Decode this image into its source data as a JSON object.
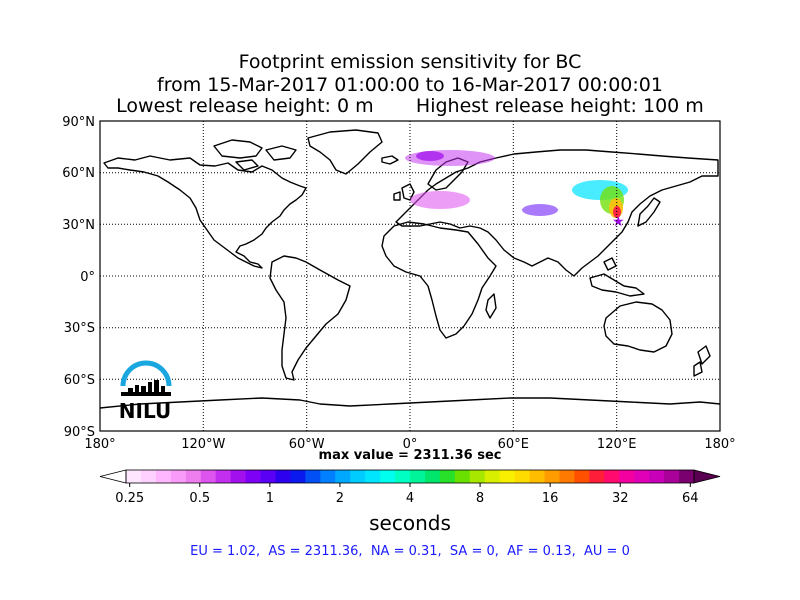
{
  "title": {
    "line1": "Footprint emission sensitivity for BC",
    "line2": "from 15-Mar-2017 01:00:00 to 16-Mar-2017 00:00:01",
    "line3_left": "Lowest release height: 0 m",
    "line3_right": "Highest release height: 100 m"
  },
  "map": {
    "lat_ticks": [
      "90°N",
      "60°N",
      "30°N",
      "0°",
      "30°S",
      "60°S",
      "90°S"
    ],
    "lon_ticks": [
      "180°",
      "120°W",
      "60°W",
      "0°",
      "60°E",
      "120°E",
      "180°"
    ],
    "max_value_label": "max value = 2311.36 sec",
    "logo_text": "NILU",
    "logo_color": "#1aa7e0"
  },
  "colorbar": {
    "ticks": [
      "0.25",
      "0.5",
      "1",
      "2",
      "4",
      "8",
      "16",
      "32",
      "64"
    ],
    "label": "seconds",
    "colors": [
      "#ffe6ff",
      "#ffd1ff",
      "#ffb8ff",
      "#f99cf9",
      "#ee7dee",
      "#dd55ee",
      "#c22fee",
      "#a310ee",
      "#7e00f5",
      "#5a00f5",
      "#2e00f0",
      "#0a1aee",
      "#0050f5",
      "#0080ff",
      "#00a8ff",
      "#00ccff",
      "#00e6ff",
      "#00ffee",
      "#00ffc2",
      "#00f59a",
      "#00e66c",
      "#28e02a",
      "#6ae000",
      "#a8e800",
      "#d8ef00",
      "#f8f000",
      "#ffdc00",
      "#ffbd00",
      "#ff9d00",
      "#ff7a00",
      "#ff5000",
      "#ff1e3a",
      "#ff0a6e",
      "#f500a0",
      "#e000b8",
      "#c800b8",
      "#a80098",
      "#7a0070"
    ]
  },
  "region_stats": "EU = 1.02,  AS = 2311.36,  NA = 0.31,  SA = 0,  AF = 0.13,  AU = 0",
  "colors": {
    "map_frame": "#000000",
    "stats_text": "#1a1aff"
  }
}
